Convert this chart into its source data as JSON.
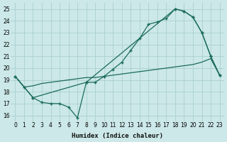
{
  "xlabel": "Humidex (Indice chaleur)",
  "bg_color": "#cce8e8",
  "grid_color": "#aacfcf",
  "line_color": "#1a6b5a",
  "xlim": [
    -0.5,
    23.5
  ],
  "ylim": [
    15.5,
    25.5
  ],
  "xticks": [
    0,
    1,
    2,
    3,
    4,
    5,
    6,
    7,
    8,
    9,
    10,
    11,
    12,
    13,
    14,
    15,
    16,
    17,
    18,
    19,
    20,
    21,
    22,
    23
  ],
  "yticks": [
    16,
    17,
    18,
    19,
    20,
    21,
    22,
    23,
    24,
    25
  ],
  "line1_x": [
    0,
    1,
    2,
    3,
    4,
    5,
    6,
    7,
    8,
    9,
    10,
    11,
    12,
    13,
    14,
    15,
    16,
    17,
    18,
    19,
    20,
    21,
    22,
    23
  ],
  "line1_y": [
    19.3,
    18.4,
    17.5,
    17.1,
    17.0,
    17.0,
    16.7,
    15.8,
    18.8,
    18.8,
    19.3,
    19.9,
    20.5,
    21.5,
    22.5,
    23.7,
    23.9,
    24.2,
    25.0,
    24.8,
    24.3,
    23.0,
    21.0,
    19.4
  ],
  "line2_x": [
    0,
    1,
    2,
    3,
    4,
    5,
    6,
    7,
    8,
    9,
    10,
    11,
    12,
    13,
    14,
    15,
    16,
    17,
    18,
    19,
    20,
    21,
    22,
    23
  ],
  "line2_y": [
    19.3,
    18.4,
    18.5,
    18.7,
    18.8,
    18.9,
    19.0,
    19.1,
    19.2,
    19.2,
    19.3,
    19.4,
    19.5,
    19.6,
    19.7,
    19.8,
    19.9,
    20.0,
    20.1,
    20.2,
    20.3,
    20.5,
    20.8,
    19.4
  ],
  "line3_x": [
    0,
    2,
    8,
    18,
    19,
    20,
    21,
    22,
    23
  ],
  "line3_y": [
    19.3,
    17.5,
    18.8,
    25.0,
    24.8,
    24.3,
    23.0,
    21.0,
    19.4
  ]
}
